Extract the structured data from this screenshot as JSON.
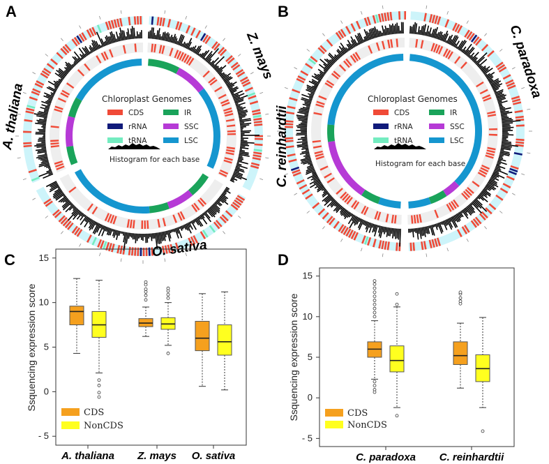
{
  "panels": {
    "a": "A",
    "b": "B",
    "c": "C",
    "d": "D"
  },
  "circos_a": {
    "species": [
      "A. thaliana",
      "Z. mays",
      "O. sativa"
    ],
    "legend_title": "Chloroplast Genomes",
    "legend_items": [
      {
        "label": "CDS",
        "color": "#f04a37"
      },
      {
        "label": "IR",
        "color": "#1aa35a"
      },
      {
        "label": "rRNA",
        "color": "#101a7a"
      },
      {
        "label": "SSC",
        "color": "#b63ad6"
      },
      {
        "label": "tRNA",
        "color": "#74ecc0"
      },
      {
        "label": "LSC",
        "color": "#1596cf"
      }
    ],
    "histogram_label": "Histogram for each base"
  },
  "circos_b": {
    "species": [
      "C. paradoxa",
      "C. reinhardtii"
    ],
    "legend_title": "Chloroplast Genomes",
    "legend_items": [
      {
        "label": "CDS",
        "color": "#f04a37"
      },
      {
        "label": "IR",
        "color": "#1aa35a"
      },
      {
        "label": "rRNA",
        "color": "#101a7a"
      },
      {
        "label": "SSC",
        "color": "#b63ad6"
      },
      {
        "label": "tRNA",
        "color": "#74ecc0"
      },
      {
        "label": "LSC",
        "color": "#1596cf"
      }
    ],
    "histogram_label": "Histogram for each base"
  },
  "chart_data": [
    {
      "type": "box",
      "panel": "C",
      "ylabel": "Ssquencing expression score",
      "ylim": [
        -6,
        16
      ],
      "yticks": [
        "15",
        "10",
        "5",
        "0",
        "- 5"
      ],
      "categories": [
        "A. thaliana",
        "Z. mays",
        "O. sativa"
      ],
      "legend": [
        {
          "label": "CDS",
          "color": "#f5a01e"
        },
        {
          "label": "NonCDS",
          "color": "#ffff1f"
        }
      ],
      "boxes": [
        {
          "category": "A. thaliana",
          "series": "CDS",
          "min": 4.3,
          "q1": 7.5,
          "median": 9.0,
          "q3": 9.6,
          "max": 12.7,
          "outliers": []
        },
        {
          "category": "A. thaliana",
          "series": "NonCDS",
          "min": 2.1,
          "q1": 6.1,
          "median": 7.5,
          "q3": 9.0,
          "max": 12.5,
          "outliers": [
            1.3,
            0.7,
            -0.1,
            -0.6
          ]
        },
        {
          "category": "Z. mays",
          "series": "CDS",
          "min": 6.2,
          "q1": 7.3,
          "median": 7.7,
          "q3": 8.2,
          "max": 9.5,
          "outliers": [
            10.3,
            10.8,
            11.2,
            11.5,
            12.0,
            12.3
          ]
        },
        {
          "category": "Z. mays",
          "series": "NonCDS",
          "min": 5.2,
          "q1": 7.0,
          "median": 7.6,
          "q3": 8.3,
          "max": 10.0,
          "outliers": [
            10.5,
            10.9,
            11.3,
            11.6,
            4.3
          ]
        },
        {
          "category": "O. sativa",
          "series": "CDS",
          "min": 0.6,
          "q1": 4.6,
          "median": 6.0,
          "q3": 7.9,
          "max": 11.0,
          "outliers": []
        },
        {
          "category": "O. sativa",
          "series": "NonCDS",
          "min": 0.2,
          "q1": 4.1,
          "median": 5.6,
          "q3": 7.5,
          "max": 11.2,
          "outliers": []
        }
      ]
    },
    {
      "type": "box",
      "panel": "D",
      "ylabel": "Ssquencing expression score",
      "ylim": [
        -6,
        16
      ],
      "yticks": [
        "15",
        "10",
        "5",
        "0",
        "- 5"
      ],
      "categories": [
        "C. paradoxa",
        "C. reinhardtii"
      ],
      "legend": [
        {
          "label": "CDS",
          "color": "#f5a01e"
        },
        {
          "label": "NonCDS",
          "color": "#ffff1f"
        }
      ],
      "boxes": [
        {
          "category": "C. paradoxa",
          "series": "CDS",
          "min": 2.3,
          "q1": 5.0,
          "median": 6.0,
          "q3": 6.9,
          "max": 9.5,
          "outliers": [
            10.0,
            10.5,
            11.0,
            11.5,
            12.0,
            12.5,
            13.0,
            13.5,
            14.0,
            14.4,
            2.0,
            1.5,
            1.0,
            0.7
          ]
        },
        {
          "category": "C. paradoxa",
          "series": "NonCDS",
          "min": -1.2,
          "q1": 3.2,
          "median": 4.6,
          "q3": 6.4,
          "max": 11.2,
          "outliers": [
            11.5,
            12.8,
            -2.2
          ]
        },
        {
          "category": "C. reinhardtii",
          "series": "CDS",
          "min": 1.2,
          "q1": 4.1,
          "median": 5.2,
          "q3": 6.9,
          "max": 9.2,
          "outliers": [
            11.6,
            11.9,
            12.3,
            12.8,
            13.0
          ]
        },
        {
          "category": "C. reinhardtii",
          "series": "NonCDS",
          "min": -1.2,
          "q1": 2.0,
          "median": 3.6,
          "q3": 5.3,
          "max": 9.9,
          "outliers": [
            -4.1
          ]
        }
      ]
    }
  ]
}
